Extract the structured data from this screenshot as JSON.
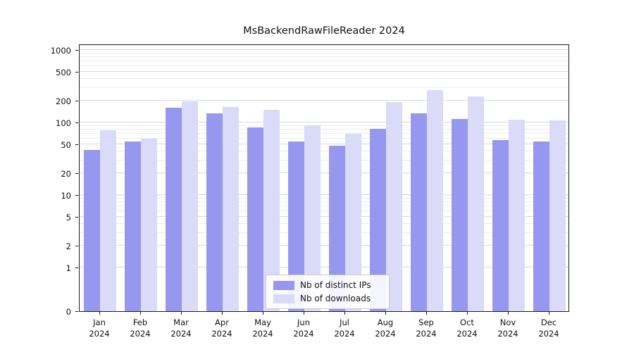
{
  "title": "MsBackendRawFileReader 2024",
  "chart_data": {
    "type": "bar",
    "title": "MsBackendRawFileReader 2024",
    "scale": "symlog",
    "grid": "horizontal",
    "legend_position": "bottom-center-inside",
    "categories": [
      "Jan",
      "Feb",
      "Mar",
      "Apr",
      "May",
      "Jun",
      "Jul",
      "Aug",
      "Sep",
      "Oct",
      "Nov",
      "Dec"
    ],
    "year": "2024",
    "series": [
      {
        "name": "Nb of distinct IPs",
        "color": "#9697ee",
        "values": [
          42,
          55,
          160,
          135,
          85,
          55,
          48,
          82,
          135,
          112,
          57,
          55
        ]
      },
      {
        "name": "Nb of downloads",
        "color": "#dadaf9",
        "values": [
          78,
          60,
          197,
          165,
          150,
          92,
          70,
          190,
          280,
          230,
          110,
          108
        ]
      }
    ],
    "yticks": [
      0,
      1,
      2,
      5,
      10,
      20,
      50,
      100,
      200,
      500,
      1000
    ],
    "ylim": [
      0,
      1220
    ],
    "xlabel": "",
    "ylabel": ""
  }
}
